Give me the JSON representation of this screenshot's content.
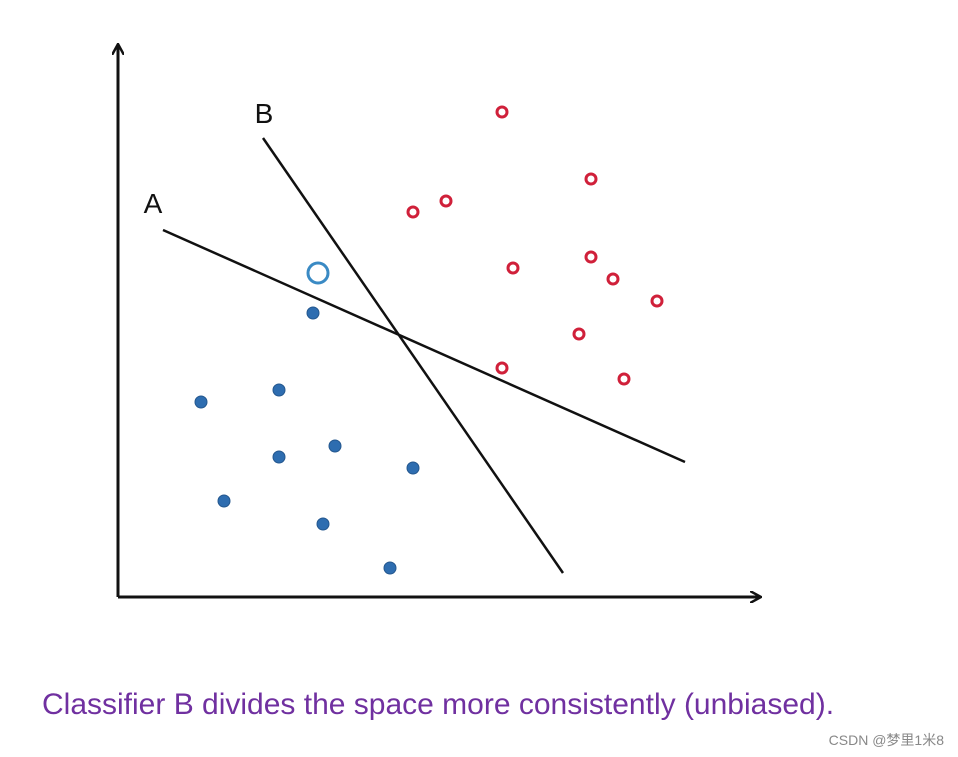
{
  "labels": {
    "a": "A",
    "b": "B"
  },
  "caption": "Classifier B divides the space more consistently (unbiased).",
  "watermark": "CSDN @梦里1米8"
}
